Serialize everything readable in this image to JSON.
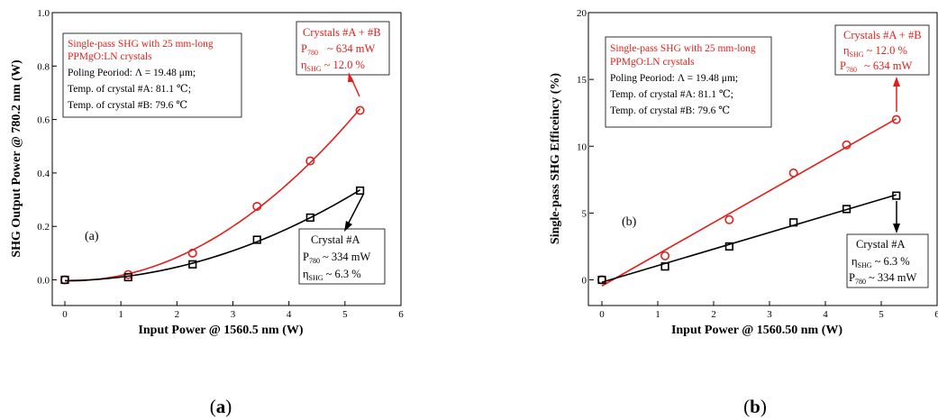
{
  "chart_data": [
    {
      "id": "a",
      "type": "scatter",
      "xlabel": "Input Power @ 1560.5 nm (W)",
      "ylabel": "SHG Output Power @ 780.2 nm (W)",
      "xlim": [
        0,
        6
      ],
      "ylim": [
        0,
        1.0
      ],
      "xticks": [
        "0",
        "1",
        "2",
        "3",
        "4",
        "5",
        "6"
      ],
      "yticks": [
        "0.0",
        "0.2",
        "0.4",
        "0.6",
        "0.8",
        "1.0"
      ],
      "grid": false,
      "inner_label": "(a)",
      "caption": "a",
      "fit": "quadratic",
      "series": [
        {
          "name": "Crystals #A + #B",
          "marker": "circle",
          "color": "#e0201c",
          "x": [
            0,
            1.13,
            2.28,
            3.43,
            4.38,
            5.27
          ],
          "y": [
            0,
            0.02,
            0.1,
            0.275,
            0.445,
            0.634
          ]
        },
        {
          "name": "Crystal #A",
          "marker": "square",
          "color": "#000000",
          "x": [
            0,
            1.13,
            2.28,
            3.43,
            4.38,
            5.27
          ],
          "y": [
            0,
            0.01,
            0.058,
            0.15,
            0.233,
            0.334
          ]
        }
      ],
      "annotations": {
        "info": [
          "Single-pass SHG with 25 mm-long",
          "PPMgO:LN crystals",
          "Poling Peoriod:  Λ = 19.48  μm;",
          "Temp. of crystal #A: 81.1 ℃;",
          "Temp. of crystal #B: 79.6 ℃"
        ],
        "red_box": {
          "title": "Crystals #A + #B",
          "p": "~ 634 mW",
          "eta": "~ 12.0 %"
        },
        "black_box": {
          "title": "Crystal  #A",
          "p": "~ 334 mW",
          "eta": "~ 6.3 %"
        }
      }
    },
    {
      "id": "b",
      "type": "scatter",
      "xlabel": "Input Power @ 1560.50 nm (W)",
      "ylabel": "Single-pass SHG Efficeincy (%)",
      "xlim": [
        0,
        6
      ],
      "ylim": [
        0,
        20
      ],
      "xticks": [
        "0",
        "1",
        "2",
        "3",
        "4",
        "5",
        "6"
      ],
      "yticks": [
        "0",
        "5",
        "10",
        "15",
        "20"
      ],
      "grid": false,
      "inner_label": "(b)",
      "caption": "b",
      "fit": "linear",
      "series": [
        {
          "name": "Crystals #A + #B",
          "marker": "circle",
          "color": "#e0201c",
          "x": [
            0,
            1.13,
            2.28,
            3.43,
            4.38,
            5.27
          ],
          "y": [
            0,
            1.8,
            4.5,
            8.0,
            10.1,
            12.0
          ]
        },
        {
          "name": "Crystal #A",
          "marker": "square",
          "color": "#000000",
          "x": [
            0,
            1.13,
            2.28,
            3.43,
            4.38,
            5.27
          ],
          "y": [
            0,
            1.0,
            2.5,
            4.3,
            5.3,
            6.3
          ]
        }
      ],
      "annotations": {
        "info": [
          "Single-pass SHG with 25 mm-long",
          "PPMgO:LN crystals",
          "Poling Peoriod:  Λ = 19.48  μm;",
          "Temp. of crystal #A: 81.1 ℃;",
          "Temp. of crystal #B: 79.6 ℃"
        ],
        "red_box": {
          "title": "Crystals #A + #B",
          "eta": "~ 12.0 %",
          "p": "~ 634 mW"
        },
        "black_box": {
          "title": "Crystal  #A",
          "eta": "~ 6.3 %",
          "p": "~ 334 mW"
        }
      }
    }
  ],
  "symbols": {
    "p_main": "P",
    "p_sub": "780",
    "eta_main": "η",
    "eta_sub": "SHG"
  }
}
